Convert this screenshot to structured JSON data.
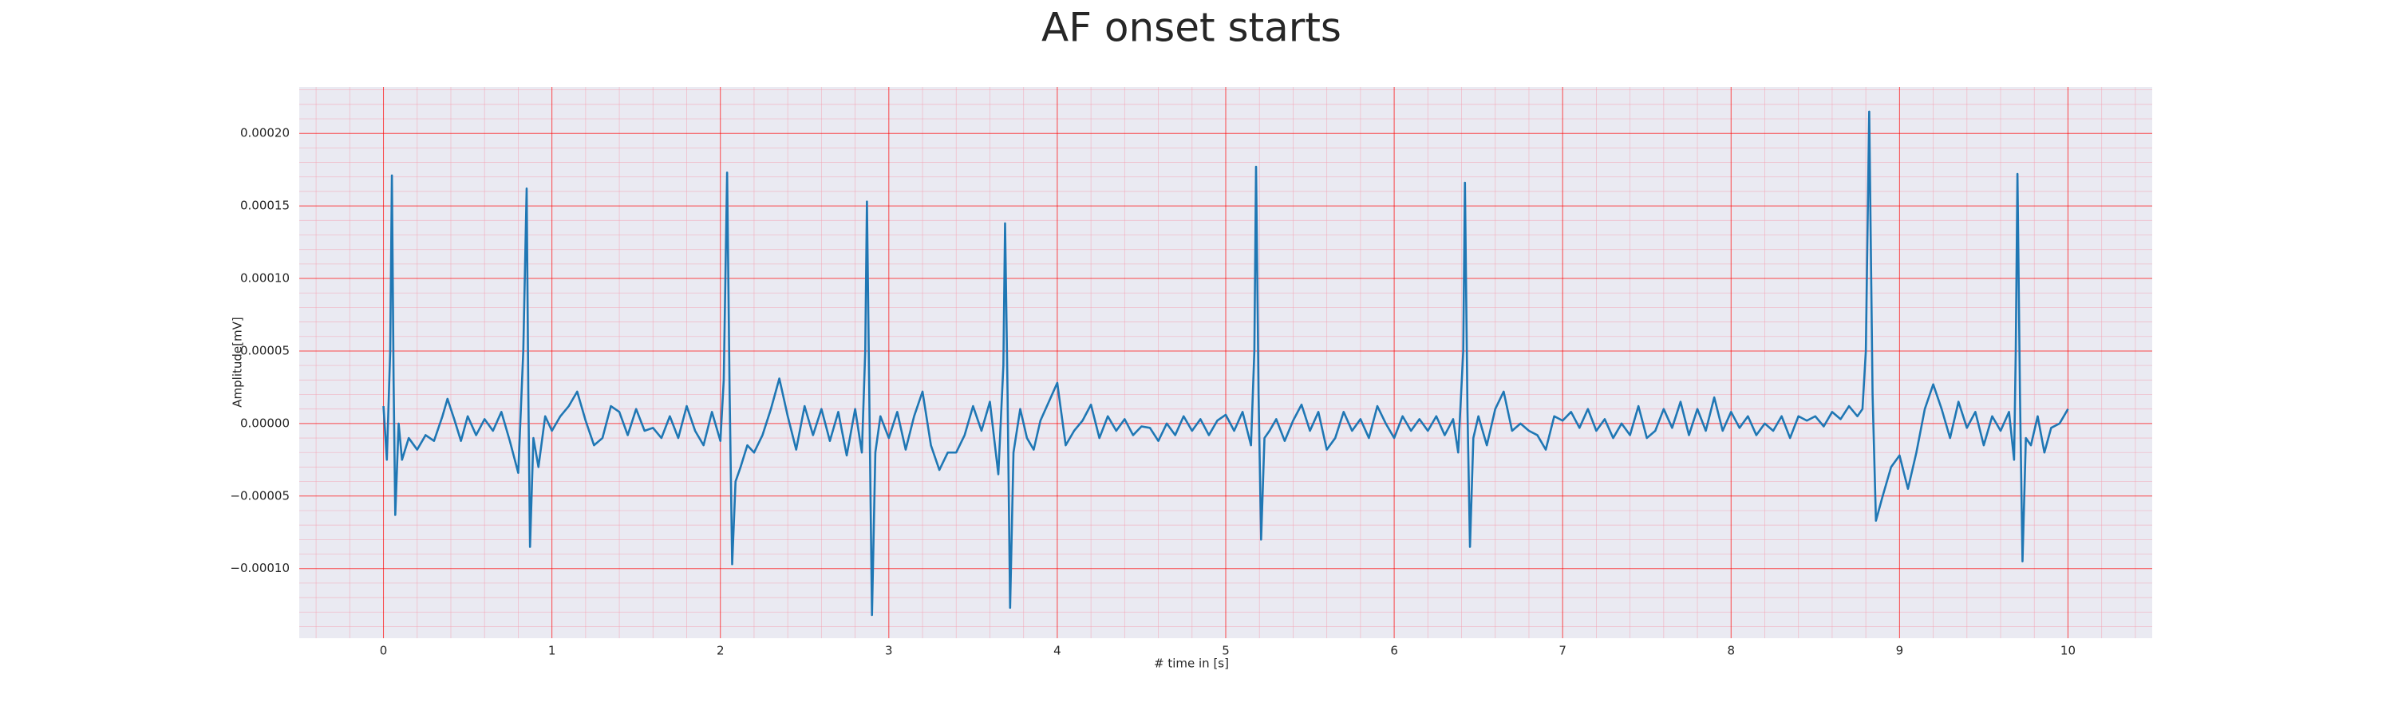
{
  "chart_data": {
    "type": "line",
    "title": "AF onset starts",
    "x_label": "# time in [s]",
    "y_label": "Amplitude[mV]",
    "color": "#1f77b4",
    "background": "#eaeaf2",
    "grid": true,
    "grid_color": "#ff0000",
    "minor_grid_color": "#f4a0b0",
    "minor_divisions": 5,
    "xlim": [
      -0.5,
      10.5
    ],
    "ylim": [
      -0.000148,
      0.000232
    ],
    "xticks": [
      0,
      1,
      2,
      3,
      4,
      5,
      6,
      7,
      8,
      9,
      10
    ],
    "yticks": [
      {
        "value": -0.0001,
        "label": "−0.00010"
      },
      {
        "value": -5e-05,
        "label": "−0.00005"
      },
      {
        "value": 0,
        "label": "0.00000"
      },
      {
        "value": 5e-05,
        "label": "0.00005"
      },
      {
        "value": 0.0001,
        "label": "0.00010"
      },
      {
        "value": 0.00015,
        "label": "0.00015"
      },
      {
        "value": 0.0002,
        "label": "0.00020"
      }
    ],
    "x": [
      0,
      0.02,
      0.04,
      0.05,
      0.06,
      0.07,
      0.09,
      0.11,
      0.15,
      0.2,
      0.25,
      0.3,
      0.35,
      0.38,
      0.42,
      0.46,
      0.5,
      0.55,
      0.6,
      0.65,
      0.7,
      0.75,
      0.8,
      0.83,
      0.85,
      0.86,
      0.87,
      0.89,
      0.92,
      0.96,
      1.0,
      1.05,
      1.1,
      1.15,
      1.2,
      1.25,
      1.3,
      1.35,
      1.4,
      1.45,
      1.5,
      1.55,
      1.6,
      1.65,
      1.7,
      1.75,
      1.8,
      1.85,
      1.9,
      1.95,
      2.0,
      2.02,
      2.04,
      2.055,
      2.07,
      2.09,
      2.12,
      2.16,
      2.2,
      2.25,
      2.3,
      2.35,
      2.4,
      2.45,
      2.5,
      2.55,
      2.6,
      2.65,
      2.7,
      2.75,
      2.8,
      2.84,
      2.86,
      2.87,
      2.885,
      2.9,
      2.92,
      2.95,
      3.0,
      3.05,
      3.1,
      3.15,
      3.2,
      3.25,
      3.3,
      3.35,
      3.4,
      3.45,
      3.5,
      3.55,
      3.6,
      3.65,
      3.68,
      3.69,
      3.705,
      3.72,
      3.74,
      3.78,
      3.82,
      3.86,
      3.9,
      3.95,
      4.0,
      4.05,
      4.1,
      4.15,
      4.2,
      4.25,
      4.3,
      4.35,
      4.4,
      4.45,
      4.5,
      4.55,
      4.6,
      4.65,
      4.7,
      4.75,
      4.8,
      4.85,
      4.9,
      4.95,
      5.0,
      5.05,
      5.1,
      5.15,
      5.17,
      5.18,
      5.195,
      5.21,
      5.23,
      5.26,
      5.3,
      5.35,
      5.4,
      5.45,
      5.5,
      5.55,
      5.6,
      5.65,
      5.7,
      5.75,
      5.8,
      5.85,
      5.9,
      5.95,
      6.0,
      6.05,
      6.1,
      6.15,
      6.2,
      6.25,
      6.3,
      6.35,
      6.38,
      6.41,
      6.42,
      6.435,
      6.45,
      6.47,
      6.5,
      6.55,
      6.6,
      6.65,
      6.7,
      6.75,
      6.8,
      6.85,
      6.9,
      6.95,
      7.0,
      7.05,
      7.1,
      7.15,
      7.2,
      7.25,
      7.3,
      7.35,
      7.4,
      7.45,
      7.5,
      7.55,
      7.6,
      7.65,
      7.7,
      7.75,
      7.8,
      7.85,
      7.9,
      7.95,
      8.0,
      8.05,
      8.1,
      8.15,
      8.2,
      8.25,
      8.3,
      8.35,
      8.4,
      8.45,
      8.5,
      8.55,
      8.6,
      8.65,
      8.7,
      8.75,
      8.78,
      8.8,
      8.82,
      8.84,
      8.86,
      8.9,
      8.95,
      9.0,
      9.05,
      9.1,
      9.15,
      9.2,
      9.25,
      9.3,
      9.35,
      9.4,
      9.45,
      9.5,
      9.55,
      9.6,
      9.65,
      9.68,
      9.69,
      9.7,
      9.715,
      9.73,
      9.75,
      9.78,
      9.82,
      9.86,
      9.9,
      9.95,
      10.0
    ],
    "values": [
      1.2e-05,
      -2.5e-05,
      5e-05,
      0.000171,
      3e-05,
      -6.3e-05,
      0,
      -2.5e-05,
      -1e-05,
      -1.8e-05,
      -8e-06,
      -1.2e-05,
      5e-06,
      1.7e-05,
      3e-06,
      -1.2e-05,
      5e-06,
      -8e-06,
      3e-06,
      -5e-06,
      8e-06,
      -1.2e-05,
      -3.4e-05,
      5e-05,
      0.000162,
      2e-05,
      -8.5e-05,
      -1e-05,
      -3e-05,
      5e-06,
      -5e-06,
      5e-06,
      1.2e-05,
      2.2e-05,
      2e-06,
      -1.5e-05,
      -1e-05,
      1.2e-05,
      8e-06,
      -8e-06,
      1e-05,
      -5e-06,
      -3e-06,
      -1e-05,
      5e-06,
      -1e-05,
      1.2e-05,
      -5e-06,
      -1.5e-05,
      8e-06,
      -1.2e-05,
      3e-05,
      0.000173,
      2e-05,
      -9.7e-05,
      -4e-05,
      -3e-05,
      -1.5e-05,
      -2e-05,
      -8e-06,
      1e-05,
      3.1e-05,
      5e-06,
      -1.8e-05,
      1.2e-05,
      -8e-06,
      1e-05,
      -1.2e-05,
      8e-06,
      -2.2e-05,
      1e-05,
      -2e-05,
      5e-05,
      0.000153,
      1e-05,
      -0.000132,
      -2e-05,
      5e-06,
      -1e-05,
      8e-06,
      -1.8e-05,
      5e-06,
      2.2e-05,
      -1.5e-05,
      -3.2e-05,
      -2e-05,
      -2e-05,
      -8e-06,
      1.2e-05,
      -5e-06,
      1.5e-05,
      -3.5e-05,
      4e-05,
      0.000138,
      2e-05,
      -0.000127,
      -2e-05,
      1e-05,
      -1e-05,
      -1.8e-05,
      2e-06,
      1.5e-05,
      2.8e-05,
      -1.5e-05,
      -5e-06,
      2e-06,
      1.3e-05,
      -1e-05,
      5e-06,
      -5e-06,
      3e-06,
      -8e-06,
      -2e-06,
      -3e-06,
      -1.2e-05,
      0,
      -8e-06,
      5e-06,
      -5e-06,
      3e-06,
      -8e-06,
      2e-06,
      6e-06,
      -5e-06,
      8e-06,
      -1.5e-05,
      5e-05,
      0.000177,
      2e-05,
      -8e-05,
      -1e-05,
      -5e-06,
      3e-06,
      -1.2e-05,
      2e-06,
      1.3e-05,
      -5e-06,
      8e-06,
      -1.8e-05,
      -1e-05,
      8e-06,
      -5e-06,
      3e-06,
      -1e-05,
      1.2e-05,
      0,
      -1e-05,
      5e-06,
      -5e-06,
      3e-06,
      -5e-06,
      5e-06,
      -8e-06,
      3e-06,
      -2e-05,
      5e-05,
      0.000166,
      1e-05,
      -8.5e-05,
      -1e-05,
      5e-06,
      -1.5e-05,
      1e-05,
      2.2e-05,
      -5e-06,
      0,
      -5e-06,
      -8e-06,
      -1.8e-05,
      5e-06,
      2e-06,
      8e-06,
      -3e-06,
      1e-05,
      -5e-06,
      3e-06,
      -1e-05,
      0,
      -8e-06,
      1.2e-05,
      -1e-05,
      -5e-06,
      1e-05,
      -3e-06,
      1.5e-05,
      -8e-06,
      1e-05,
      -5e-06,
      1.8e-05,
      -5e-06,
      8e-06,
      -3e-06,
      5e-06,
      -8e-06,
      0,
      -5e-06,
      5e-06,
      -1e-05,
      5e-06,
      2e-06,
      5e-06,
      -2e-06,
      8e-06,
      3e-06,
      1.2e-05,
      5e-06,
      1e-05,
      5e-05,
      0.000215,
      2e-05,
      -6.7e-05,
      -5e-05,
      -3e-05,
      -2.2e-05,
      -4.5e-05,
      -2e-05,
      1e-05,
      2.7e-05,
      1e-05,
      -1e-05,
      1.5e-05,
      -3e-06,
      8e-06,
      -1.5e-05,
      5e-06,
      -5e-06,
      8e-06,
      -2.5e-05,
      5e-05,
      0.000172,
      2e-05,
      -9.5e-05,
      -1e-05,
      -1.5e-05,
      5e-06,
      -2e-05,
      -3e-06,
      0,
      1e-05
    ]
  }
}
